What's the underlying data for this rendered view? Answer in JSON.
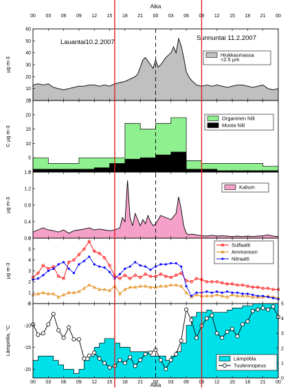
{
  "chart_data": {
    "type": "multi-panel time series",
    "top_axis_title": "Aika",
    "bottom_axis_title": "Aika",
    "time_tick_labels": [
      "00",
      "03",
      "06",
      "09",
      "12",
      "15",
      "18",
      "21",
      "00",
      "03",
      "06",
      "09",
      "12",
      "15",
      "18",
      "21",
      "00"
    ],
    "x_range_hours": [
      0,
      48
    ],
    "red_vertical_lines_hours": [
      16,
      33
    ],
    "dashed_midnight_hour": 24,
    "colors": {
      "grey_fill": "#c0c0c0",
      "green_fill": "#8ef08e",
      "black_fill": "#000000",
      "pink_fill": "#f5a0c8",
      "red_series": "#ff0000",
      "orange_series": "#e08000",
      "blue_series": "#0000ff",
      "cyan_fill": "#00e0e8",
      "red_line": "#e02020"
    },
    "panels": [
      {
        "id": "pm25",
        "ylabel": "µg m-3",
        "ylim": [
          0,
          60
        ],
        "yticks": [
          "0",
          "10",
          "20",
          "30",
          "40",
          "50",
          "60"
        ],
        "legend": [
          "Hiukkasmassa",
          "<2.5 µm"
        ],
        "annotations": [
          "Lauantai10.2.2007",
          "Sunnuntai 11.2.2007"
        ],
        "series": [
          {
            "name": "Hiukkasmassa <2.5 µm",
            "style": "area",
            "x": [
              0,
              1,
              2,
              3,
              4,
              5,
              6,
              7,
              8,
              9,
              10,
              11,
              12,
              13,
              14,
              15,
              16,
              17,
              18,
              19,
              20,
              20.5,
              21,
              21.5,
              22,
              22.5,
              23,
              23.5,
              24,
              24.5,
              25,
              26,
              27,
              27.5,
              28,
              28.5,
              29,
              29.5,
              30,
              30.5,
              31,
              32,
              33,
              34,
              35,
              36,
              37,
              38,
              39,
              40,
              41,
              42,
              43,
              44,
              45,
              46,
              47,
              48
            ],
            "values": [
              13,
              14,
              13,
              14,
              11,
              10,
              9,
              10,
              11,
              12,
              12,
              13,
              13,
              12,
              13,
              12,
              14,
              15,
              16,
              18,
              20,
              22,
              28,
              34,
              36,
              33,
              30,
              27,
              34,
              28,
              30,
              36,
              40,
              45,
              40,
              52,
              46,
              36,
              24,
              20,
              17,
              13,
              12,
              13,
              12,
              13,
              12,
              11,
              12,
              13,
              13,
              12,
              11,
              12,
              13,
              10,
              9,
              10
            ]
          }
        ]
      },
      {
        "id": "carbon",
        "ylabel": "C µg m-3",
        "ylim": [
          0,
          25
        ],
        "yticks": [
          "0",
          "5",
          "10",
          "15",
          "20",
          "25"
        ],
        "legend": [
          "Organinen hiili",
          "Musta hiili"
        ],
        "series": [
          {
            "name": "Organinen hiili",
            "style": "step",
            "edges": [
              0,
              3,
              6,
              9,
              12,
              15,
              18,
              21,
              24,
              27,
              30,
              33,
              36,
              39,
              42,
              45,
              48
            ],
            "values": [
              5,
              3,
              3,
              5,
              5,
              5,
              17,
              15,
              17,
              19,
              4,
              3,
              3,
              3,
              3,
              2
            ]
          },
          {
            "name": "Musta hiili",
            "style": "step",
            "edges": [
              0,
              3,
              6,
              9,
              12,
              15,
              18,
              21,
              24,
              27,
              30,
              33,
              36,
              39,
              42,
              45,
              48
            ],
            "values": [
              1,
              1,
              1,
              1,
              1.5,
              3,
              4.5,
              5,
              6,
              7,
              1,
              1,
              0.5,
              0.5,
              0.5,
              0.5
            ]
          }
        ]
      },
      {
        "id": "potassium",
        "ylabel": "µg m-3",
        "ylim": [
          0,
          1.6
        ],
        "yticks": [
          "0.0",
          "0.4",
          "0.8",
          "1.2",
          "1.6"
        ],
        "legend": [
          "Kalium"
        ],
        "series": [
          {
            "name": "Kalium",
            "style": "area",
            "x": [
              0,
              1,
              2,
              3,
              4,
              5,
              6,
              7,
              8,
              9,
              10,
              11,
              12,
              13,
              14,
              15,
              16,
              17,
              17.5,
              18,
              18.5,
              19,
              19.5,
              20,
              20.5,
              21,
              21.5,
              22,
              22.5,
              23,
              23.5,
              24,
              24.5,
              25,
              26,
              27,
              28,
              28.5,
              29,
              29.5,
              30,
              30.5,
              31,
              32,
              33,
              34,
              35,
              36,
              37,
              38,
              39,
              40,
              41,
              42,
              43,
              44,
              45,
              46,
              47,
              48
            ],
            "values": [
              0.15,
              0.2,
              0.25,
              0.2,
              0.18,
              0.15,
              0.2,
              0.12,
              0.18,
              0.2,
              0.22,
              0.25,
              0.2,
              0.22,
              0.2,
              0.18,
              0.2,
              0.25,
              0.5,
              0.4,
              1.4,
              0.5,
              0.3,
              0.6,
              0.45,
              0.3,
              0.45,
              0.35,
              0.55,
              0.4,
              0.3,
              0.35,
              0.45,
              0.55,
              0.5,
              0.45,
              0.6,
              1.0,
              0.7,
              0.3,
              0.12,
              0.08,
              0.1,
              0.08,
              0.06,
              0.05,
              0.07,
              0.05,
              0.06,
              0.05,
              0.04,
              0.05,
              0.04,
              0.05,
              0.04,
              0.05,
              0.06,
              0.08,
              0.05,
              0.04
            ]
          }
        ]
      },
      {
        "id": "ions",
        "ylabel": "µg m-3",
        "ylim": [
          0,
          6
        ],
        "yticks": [
          "0",
          "1",
          "2",
          "3",
          "4",
          "5",
          "6"
        ],
        "legend": [
          "Sulfaatti",
          "Ammonium",
          "Nitraatti"
        ],
        "series": [
          {
            "name": "Sulfaatti",
            "style": "line",
            "x": [
              0,
              1,
              2,
              3,
              4,
              5,
              6,
              7,
              8,
              9,
              10,
              11,
              12,
              13,
              14,
              15,
              16,
              17,
              18,
              19,
              20,
              21,
              22,
              23,
              24,
              25,
              26,
              27,
              28,
              29,
              30,
              31,
              32,
              33,
              34,
              35,
              36,
              37,
              38,
              39,
              40,
              41,
              42,
              43,
              44,
              45,
              46,
              47,
              48
            ],
            "values": [
              2.4,
              2.8,
              3.5,
              3.2,
              3.4,
              2.5,
              2.3,
              3.8,
              4.0,
              4.5,
              5.0,
              5.7,
              4.8,
              4.6,
              4.2,
              3.5,
              2.5,
              2.3,
              2.6,
              2.3,
              2.6,
              2.4,
              2.7,
              2.5,
              2.5,
              2.7,
              2.5,
              2.4,
              2.6,
              2.8,
              2.1,
              2.0,
              2.3,
              2.2,
              2.0,
              2.0,
              2.0,
              1.9,
              1.8,
              1.8,
              1.7,
              1.7,
              1.6,
              1.5,
              1.5,
              1.4,
              1.4,
              1.3,
              1.3
            ]
          },
          {
            "name": "Ammonium",
            "style": "line",
            "x": [
              0,
              1,
              2,
              3,
              4,
              5,
              6,
              7,
              8,
              9,
              10,
              11,
              12,
              13,
              14,
              15,
              16,
              17,
              18,
              19,
              20,
              21,
              22,
              23,
              24,
              25,
              26,
              27,
              28,
              29,
              30,
              31,
              32,
              33,
              34,
              35,
              36,
              37,
              38,
              39,
              40,
              41,
              42,
              43,
              44,
              45,
              46,
              47,
              48
            ],
            "values": [
              0.8,
              0.9,
              1.0,
              0.9,
              0.9,
              0.6,
              0.8,
              1.0,
              1.0,
              1.1,
              1.4,
              1.7,
              1.5,
              1.3,
              1.3,
              1.2,
              1.6,
              0.9,
              1.3,
              1.5,
              1.5,
              1.6,
              1.6,
              1.5,
              1.5,
              1.6,
              1.6,
              1.7,
              1.7,
              1.6,
              1.0,
              0.6,
              0.8,
              0.7,
              0.7,
              0.7,
              0.8,
              0.7,
              0.6,
              0.8,
              0.7,
              0.7,
              0.7,
              0.6,
              0.6,
              0.6,
              0.7,
              0.6,
              0.5
            ]
          },
          {
            "name": "Nitraatti",
            "style": "line",
            "x": [
              0,
              1,
              2,
              3,
              4,
              5,
              6,
              7,
              8,
              9,
              10,
              11,
              12,
              13,
              14,
              15,
              16,
              17,
              18,
              19,
              20,
              21,
              22,
              23,
              24,
              25,
              26,
              27,
              28,
              29,
              30,
              31,
              32,
              33,
              34,
              35,
              36,
              37,
              38,
              39,
              40,
              41,
              42,
              43,
              44,
              45,
              46,
              47,
              48
            ],
            "values": [
              2.2,
              2.3,
              2.6,
              3.0,
              3.2,
              3.6,
              3.8,
              3.2,
              2.8,
              3.6,
              3.9,
              4.3,
              3.6,
              3.4,
              3.3,
              2.9,
              2.3,
              2.7,
              3.2,
              3.4,
              3.8,
              3.5,
              3.4,
              3.1,
              3.4,
              3.6,
              3.6,
              3.7,
              3.7,
              3.4,
              1.6,
              0.7,
              1.0,
              1.0,
              1.1,
              1.0,
              1.1,
              1.0,
              1.1,
              1.0,
              1.0,
              0.9,
              0.9,
              0.8,
              0.7,
              0.7,
              0.6,
              0.5,
              0.4
            ]
          }
        ]
      },
      {
        "id": "temp_wind",
        "ylabel": "Lämpötila, °C",
        "ylim": [
          -22,
          -5
        ],
        "yticks": [
          "-5",
          "-10",
          "-15",
          "-20"
        ],
        "y2lim": [
          0,
          5
        ],
        "y2ticks": [
          "0",
          "1",
          "2",
          "3",
          "4",
          "5"
        ],
        "legend": [
          "Lämpötila",
          "Tuulennopeus"
        ],
        "series": [
          {
            "name": "Lämpötila",
            "style": "step",
            "axis": "left",
            "edges": [
              0,
              1,
              2,
              3,
              4,
              5,
              6,
              7,
              8,
              9,
              10,
              11,
              12,
              13,
              14,
              15,
              16,
              17,
              18,
              19,
              20,
              21,
              22,
              23,
              24,
              25,
              26,
              27,
              28,
              29,
              30,
              31,
              32,
              33,
              34,
              35,
              36,
              37,
              38,
              39,
              40,
              41,
              42,
              43,
              44,
              45,
              46,
              47,
              48
            ],
            "values": [
              -18,
              -17,
              -17,
              -17,
              -18,
              -19,
              -20,
              -20,
              -21,
              -20,
              -18,
              -17,
              -15,
              -14,
              -13,
              -13,
              -14,
              -15,
              -15,
              -16,
              -16,
              -16,
              -16,
              -17,
              -17,
              -17,
              -18,
              -17,
              -16,
              -14,
              -10,
              -8,
              -7,
              -7,
              -6.5,
              -7,
              -7,
              -7,
              -6.5,
              -6,
              -6,
              -5.5,
              -5.5,
              -5,
              -5,
              -5,
              -5,
              -5
            ]
          },
          {
            "name": "Tuulennopeus",
            "style": "line",
            "axis": "right",
            "x": [
              0,
              1,
              2,
              3,
              4,
              5,
              6,
              7,
              8,
              9,
              10,
              11,
              12,
              13,
              14,
              15,
              16,
              17,
              18,
              19,
              20,
              21,
              22,
              23,
              24,
              25,
              26,
              27,
              28,
              29,
              30,
              31,
              32,
              33,
              34,
              35,
              36,
              37,
              38,
              39,
              40,
              41,
              42,
              43,
              44,
              45,
              46,
              47,
              48
            ],
            "values": [
              3.6,
              2.9,
              3.0,
              3.6,
              4.3,
              3.2,
              2.7,
              3.4,
              2.6,
              2.6,
              1.3,
              1.5,
              1.7,
              1.3,
              1.0,
              0.7,
              0.8,
              1.2,
              1.0,
              1.4,
              0.8,
              1.2,
              1.6,
              1.7,
              1.9,
              1.2,
              0.6,
              1.2,
              1.6,
              2.5,
              4.6,
              3.9,
              2.7,
              3.5,
              4.0,
              4.2,
              3.0,
              2.7,
              3.1,
              3.3,
              2.8,
              3.6,
              3.8,
              4.5,
              4.6,
              4.7,
              4.6,
              4.8,
              4.1
            ]
          }
        ]
      }
    ]
  }
}
